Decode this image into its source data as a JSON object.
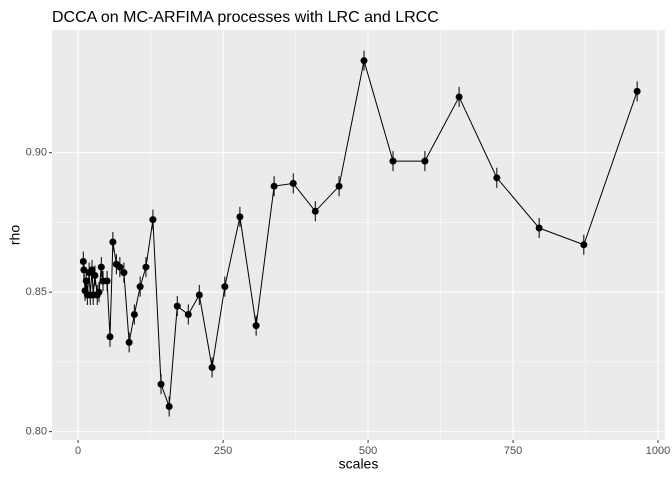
{
  "chart_data": {
    "type": "line",
    "title": "DCCA on MC-ARFIMA processes with LRC and LRCC",
    "x_label": "scales",
    "y_label": "rho",
    "x": [
      9,
      10,
      12,
      14,
      16,
      19,
      21,
      24,
      26,
      29,
      33,
      36,
      40,
      43,
      50,
      55,
      60,
      66,
      72,
      79,
      88,
      97,
      107,
      117,
      129,
      143,
      157,
      171,
      190,
      209,
      231,
      253,
      279,
      307,
      338,
      371,
      409,
      450,
      493,
      543,
      598,
      657,
      722,
      795,
      872,
      964
    ],
    "values": [
      0.861,
      0.858,
      0.8505,
      0.854,
      0.849,
      0.857,
      0.849,
      0.858,
      0.849,
      0.856,
      0.849,
      0.85,
      0.859,
      0.854,
      0.854,
      0.834,
      0.868,
      0.86,
      0.859,
      0.857,
      0.832,
      0.842,
      0.852,
      0.859,
      0.876,
      0.817,
      0.809,
      0.845,
      0.842,
      0.849,
      0.823,
      0.852,
      0.877,
      0.838,
      0.888,
      0.889,
      0.879,
      0.888,
      0.933,
      0.897,
      0.897,
      0.92,
      0.891,
      0.873,
      0.867,
      0.922
    ],
    "errors": [
      0.0036,
      0.0036,
      0.0036,
      0.0036,
      0.0036,
      0.0036,
      0.0036,
      0.0036,
      0.0036,
      0.0036,
      0.0036,
      0.0036,
      0.0036,
      0.0036,
      0.0036,
      0.0036,
      0.0036,
      0.0036,
      0.0036,
      0.0036,
      0.0036,
      0.0036,
      0.0036,
      0.0036,
      0.0036,
      0.0036,
      0.0036,
      0.0036,
      0.0036,
      0.0036,
      0.0036,
      0.0036,
      0.0036,
      0.0036,
      0.0036,
      0.0036,
      0.0036,
      0.0036,
      0.0036,
      0.0036,
      0.0036,
      0.0036,
      0.0036,
      0.0036,
      0.0036,
      0.0036
    ],
    "color": "#000000",
    "xlim": [
      -45,
      1012
    ],
    "xticks": [
      0,
      250,
      500,
      750,
      1000
    ],
    "ylim": [
      0.797,
      0.944
    ],
    "yticks": [
      {
        "value": 0.8,
        "label": "0.80"
      },
      0.85,
      {
        "value": 0.9,
        "label": "0.90"
      }
    ],
    "grid": true
  }
}
